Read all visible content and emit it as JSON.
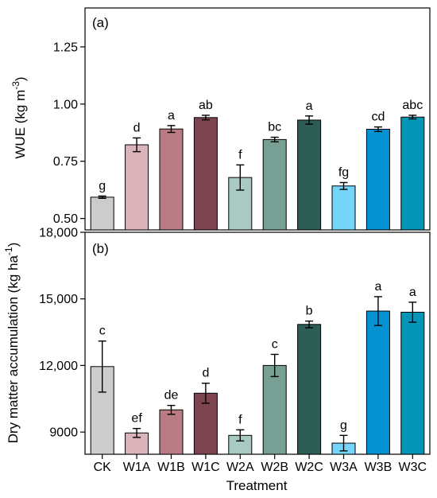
{
  "chart_data": [
    {
      "type": "bar",
      "panel_label": "(a)",
      "ylabel": "WUE (kg m⁻³)",
      "ylabel_base": "WUE (kg m",
      "ylabel_sup": "-3",
      "ylabel_tail": ")",
      "ylim": [
        0.45,
        1.42
      ],
      "yticks": [
        0.5,
        0.75,
        1.0,
        1.25
      ],
      "ytick_labels": [
        "0.50",
        "0.75",
        "1.00",
        "1.25"
      ],
      "categories": [
        "CK",
        "W1A",
        "W1B",
        "W1C",
        "W2A",
        "W2B",
        "W2C",
        "W3A",
        "W3B",
        "W3C"
      ],
      "values": [
        0.593,
        0.822,
        0.891,
        0.941,
        0.679,
        0.845,
        0.93,
        0.642,
        0.89,
        0.943
      ],
      "errors": [
        0.005,
        0.03,
        0.015,
        0.01,
        0.055,
        0.01,
        0.018,
        0.015,
        0.01,
        0.008
      ],
      "letters": [
        "g",
        "d",
        "a",
        "ab",
        "f",
        "bc",
        "a",
        "fg",
        "cd",
        "abc"
      ],
      "colors": [
        "#cccccc",
        "#dbb3bb",
        "#ba7c84",
        "#7d4450",
        "#a8cac2",
        "#779f93",
        "#2e5d55",
        "#74d5fa",
        "#0592d2",
        "#0596b7"
      ],
      "grid": false
    },
    {
      "type": "bar",
      "panel_label": "(b)",
      "ylabel": "Dry matter accumulation (kg ha⁻¹)",
      "ylabel_base": "Dry matter accumulation (kg ha",
      "ylabel_sup": "-1",
      "ylabel_tail": ")",
      "xlabel": "Treatment",
      "ylim": [
        8000,
        18000
      ],
      "yticks": [
        9000,
        12000,
        15000,
        18000
      ],
      "ytick_labels": [
        "9000",
        "12,000",
        "15,000",
        "18,000"
      ],
      "categories": [
        "CK",
        "W1A",
        "W1B",
        "W1C",
        "W2A",
        "W2B",
        "W2C",
        "W3A",
        "W3B",
        "W3C"
      ],
      "values": [
        11950,
        8960,
        10000,
        10750,
        8850,
        12000,
        13850,
        8500,
        14450,
        14400
      ],
      "errors": [
        1150,
        200,
        200,
        450,
        250,
        500,
        150,
        350,
        650,
        450
      ],
      "letters": [
        "c",
        "ef",
        "de",
        "d",
        "f",
        "c",
        "b",
        "g",
        "a",
        "a"
      ],
      "colors": [
        "#cccccc",
        "#dbb3bb",
        "#ba7c84",
        "#7d4450",
        "#a8cac2",
        "#779f93",
        "#2e5d55",
        "#74d5fa",
        "#0592d2",
        "#0596b7"
      ],
      "grid": false
    }
  ]
}
